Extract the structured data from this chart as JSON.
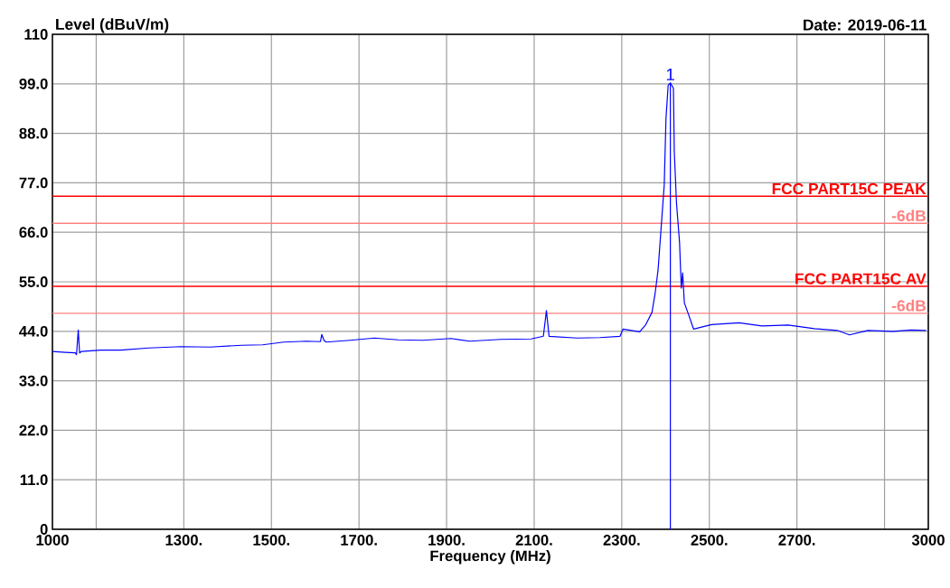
{
  "chart_data": {
    "type": "line",
    "ylabel": "Level (dBuV/m)",
    "xlabel": "Frequency (MHz)",
    "annotations": [
      "Date: 2019-06-11",
      {
        "text": "1",
        "x": 2411,
        "y": 99.2
      }
    ],
    "series": [
      {
        "color": "#0000ff",
        "x": [
          1000,
          1030,
          1052,
          1055,
          1059,
          1062,
          1066,
          1110,
          1156,
          1220,
          1294,
          1360,
          1432,
          1480,
          1528,
          1580,
          1612,
          1615,
          1620,
          1625,
          1680,
          1735,
          1790,
          1845,
          1910,
          1953,
          2023,
          2093,
          2121,
          2128,
          2134,
          2198,
          2250,
          2296,
          2303,
          2341,
          2355,
          2369,
          2376,
          2383,
          2390,
          2397,
          2401,
          2406,
          2411,
          2418,
          2420,
          2425,
          2432,
          2436,
          2439,
          2443,
          2453,
          2464,
          2505,
          2568,
          2620,
          2680,
          2740,
          2792,
          2820,
          2862,
          2920,
          2960,
          2995
        ],
        "values": [
          39.5,
          39.3,
          39.2,
          38.8,
          44.3,
          39.2,
          39.5,
          39.8,
          39.8,
          40.3,
          40.6,
          40.5,
          40.9,
          41.0,
          41.6,
          41.8,
          41.7,
          43.3,
          42.0,
          41.6,
          42.0,
          42.5,
          42.1,
          42.0,
          42.4,
          41.8,
          42.2,
          42.3,
          42.9,
          48.6,
          42.9,
          42.5,
          42.6,
          42.9,
          44.5,
          43.9,
          45.5,
          48.2,
          52.3,
          57.7,
          67.1,
          76.5,
          91.3,
          98.7,
          99.2,
          98.0,
          83.9,
          72.5,
          63.7,
          53.6,
          57.0,
          50.3,
          47.6,
          44.5,
          45.5,
          45.9,
          45.2,
          45.4,
          44.6,
          44.2,
          43.2,
          44.2,
          44.0,
          44.3,
          44.2
        ]
      }
    ],
    "xlim": [
      1000,
      3000
    ],
    "ylim": [
      0,
      110
    ],
    "xticks": [
      1000,
      {
        "value": 1100,
        "label": null
      },
      {
        "value": 1300,
        "label": "1300."
      },
      {
        "value": 1500,
        "label": "1500."
      },
      {
        "value": 1700,
        "label": "1700."
      },
      {
        "value": 1900,
        "label": "1900."
      },
      {
        "value": 2100,
        "label": "2100."
      },
      {
        "value": 2300,
        "label": "2300."
      },
      {
        "value": 2500,
        "label": "2500."
      },
      {
        "value": 2700,
        "label": "2700."
      },
      {
        "value": 2900,
        "label": null
      },
      3000
    ],
    "yticks": [
      0,
      {
        "value": 11,
        "label": "11.0"
      },
      {
        "value": 22,
        "label": "22.0"
      },
      {
        "value": 33,
        "label": "33.0"
      },
      {
        "value": 44,
        "label": "44.0"
      },
      {
        "value": 55,
        "label": "55.0"
      },
      {
        "value": 66,
        "label": "66.0"
      },
      {
        "value": 77,
        "label": "77.0"
      },
      {
        "value": 88,
        "label": "88.0"
      },
      {
        "value": 99,
        "label": "99.0"
      },
      110
    ],
    "ref_lines": [
      {
        "axis": "y",
        "value": 74,
        "label": "FCC PART15C PEAK",
        "color": "#ff0000"
      },
      {
        "axis": "y",
        "value": 68,
        "label": "-6dB",
        "color": "#ff8080"
      },
      {
        "axis": "y",
        "value": 54,
        "label": "FCC PART15C AV",
        "color": "#ff0000"
      },
      {
        "axis": "y",
        "value": 48,
        "label": "-6dB",
        "color": "#ff8080"
      },
      {
        "axis": "x",
        "value": 2411,
        "color": "#0000ff"
      }
    ],
    "grid": true,
    "marker": "none",
    "line_style": "solid"
  }
}
